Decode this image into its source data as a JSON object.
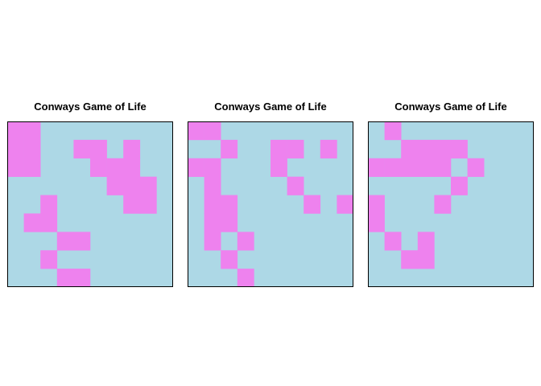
{
  "colors": {
    "dead": "#ADD8E6",
    "alive": "#EE82EE",
    "border": "#000000"
  },
  "boards": [
    {
      "title": "Conways Game of Life",
      "rows": [
        "##........",
        "##..##.#..",
        "##...###..",
        "......###.",
        "..#....##.",
        ".##.......",
        "...##.....",
        "..#.......",
        "...##....."
      ]
    },
    {
      "title": "Conways Game of Life",
      "rows": [
        "##........",
        "..#..##.#.",
        "##...#....",
        ".#....#...",
        ".##....#.#",
        ".##.......",
        ".#.#......",
        "..#.......",
        "...#......"
      ]
    },
    {
      "title": "Conways Game of Life",
      "rows": [
        ".#........",
        "..####....",
        "#####.#...",
        ".....#....",
        "#...#.....",
        "#.........",
        ".#.#......",
        "..##......",
        ".........."
      ]
    }
  ]
}
